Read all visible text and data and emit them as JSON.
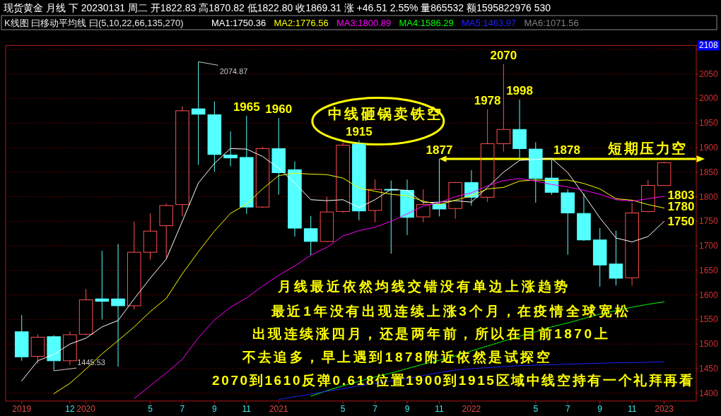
{
  "chart_data": {
    "type": "candlestick",
    "title": "现货黄金 月线 下 20230131 周二 开1822.83 高1870.82 低1822.80 收1869.31 涨 +46.51 2.55% 量865532 额1595822976 530",
    "legend_title": "K线图 曰移动平均线 曰(5,10,22,66,135,270)",
    "legend": "top",
    "grid": "y",
    "x": [
      "2019-09",
      "2019-10",
      "2019-11",
      "2019-12",
      "2020-01",
      "2020-02",
      "2020-03",
      "2020-04",
      "2020-05",
      "2020-06",
      "2020-07",
      "2020-08",
      "2020-09",
      "2020-10",
      "2020-11",
      "2020-12",
      "2021-01",
      "2021-02",
      "2021-03",
      "2021-04",
      "2021-05",
      "2021-06",
      "2021-07",
      "2021-08",
      "2021-09",
      "2021-10",
      "2021-11",
      "2021-12",
      "2022-01",
      "2022-02",
      "2022-03",
      "2022-04",
      "2022-05",
      "2022-06",
      "2022-07",
      "2022-08",
      "2022-09",
      "2022-10",
      "2022-11",
      "2022-12",
      "2023-01"
    ],
    "xlim": [
      "2019-08",
      "2023-03"
    ],
    "xticks": [
      {
        "value": "2019-09",
        "label": "2019"
      },
      {
        "value": "2019-12",
        "label": "12"
      },
      {
        "value": "2020-01",
        "label": "2020"
      },
      {
        "value": "2020-05",
        "label": "5"
      },
      {
        "value": "2020-07",
        "label": "7"
      },
      {
        "value": "2020-09",
        "label": "9"
      },
      {
        "value": "2020-11",
        "label": "11"
      },
      {
        "value": "2021-01",
        "label": "2021"
      },
      {
        "value": "2021-05",
        "label": "5"
      },
      {
        "value": "2021-07",
        "label": "7"
      },
      {
        "value": "2021-09",
        "label": "9"
      },
      {
        "value": "2021-11",
        "label": "11"
      },
      {
        "value": "2022-01",
        "label": "2022"
      },
      {
        "value": "2022-05",
        "label": "5"
      },
      {
        "value": "2022-07",
        "label": "7"
      },
      {
        "value": "2022-09",
        "label": "9"
      },
      {
        "value": "2022-11",
        "label": "11"
      },
      {
        "value": "2023-01",
        "label": "2023"
      }
    ],
    "ylim": [
      1384,
      2108
    ],
    "yticks": [
      1400,
      1450,
      1500,
      1550,
      1600,
      1650,
      1700,
      1750,
      1800,
      1850,
      1900,
      1950,
      2000,
      2050,
      {
        "value": 2100,
        "label": null
      },
      {
        "value": 2108,
        "label": "2108"
      }
    ],
    "ohlc": [
      [
        1525,
        1559,
        1466,
        1474
      ],
      [
        1475,
        1520,
        1460,
        1514
      ],
      [
        1515,
        1518,
        1445.53,
        1466
      ],
      [
        1466,
        1526,
        1457,
        1519
      ],
      [
        1520,
        1612,
        1518,
        1590
      ],
      [
        1592,
        1690,
        1550,
        1587
      ],
      [
        1592,
        1704,
        1454,
        1578
      ],
      [
        1578,
        1749,
        1570,
        1687
      ],
      [
        1687,
        1766,
        1672,
        1730
      ],
      [
        1741,
        1786,
        1674,
        1782
      ],
      [
        1784,
        1984,
        1760,
        1975
      ],
      [
        1979,
        2074.87,
        1865,
        1968
      ],
      [
        1967,
        1994,
        1851,
        1886
      ],
      [
        1885,
        1933,
        1862,
        1879
      ],
      [
        1880,
        1965,
        1765,
        1779
      ],
      [
        1779,
        1901,
        1777,
        1898
      ],
      [
        1898,
        1960,
        1804,
        1849
      ],
      [
        1855,
        1872,
        1719,
        1736
      ],
      [
        1735,
        1761,
        1681,
        1709
      ],
      [
        1709,
        1800,
        1708,
        1769
      ],
      [
        1770,
        1911,
        1767,
        1905
      ],
      [
        1907,
        1915,
        1752,
        1771
      ],
      [
        1772,
        1835,
        1748,
        1815
      ],
      [
        1815,
        1833,
        1684,
        1814
      ],
      [
        1813,
        1835,
        1722,
        1758
      ],
      [
        1759,
        1815,
        1748,
        1784
      ],
      [
        1785,
        1877,
        1760,
        1775
      ],
      [
        1776,
        1830,
        1755,
        1829
      ],
      [
        1829,
        1854,
        1782,
        1799
      ],
      [
        1799,
        1978,
        1789,
        1908
      ],
      [
        1908,
        2070,
        1892,
        1937
      ],
      [
        1937,
        1998,
        1875,
        1898
      ],
      [
        1897,
        1911,
        1788,
        1837
      ],
      [
        1838,
        1877,
        1804,
        1809
      ],
      [
        1808,
        1815,
        1682,
        1767
      ],
      [
        1766,
        1807,
        1710,
        1712
      ],
      [
        1712,
        1736,
        1617,
        1661
      ],
      [
        1663,
        1731,
        1619,
        1634
      ],
      [
        1635,
        1788,
        1619,
        1767
      ],
      [
        1770,
        1834,
        1768,
        1823
      ],
      [
        1822.83,
        1870.82,
        1822.8,
        1869.31
      ]
    ],
    "colors": [
      "#54ffff",
      "#ff5050",
      "#54ffff",
      "#ff5050",
      "#ff5050",
      "#54ffff",
      "#54ffff",
      "#ff5050",
      "#ff5050",
      "#ff5050",
      "#ff5050",
      "#54ffff",
      "#54ffff",
      "#54ffff",
      "#54ffff",
      "#ff5050",
      "#54ffff",
      "#54ffff",
      "#54ffff",
      "#ff5050",
      "#ff5050",
      "#54ffff",
      "#ff5050",
      "#54ffff",
      "#54ffff",
      "#ff5050",
      "#54ffff",
      "#ff5050",
      "#54ffff",
      "#ff5050",
      "#ff5050",
      "#54ffff",
      "#54ffff",
      "#54ffff",
      "#54ffff",
      "#54ffff",
      "#54ffff",
      "#54ffff",
      "#ff5050",
      "#ff5050",
      "#ff5050"
    ],
    "series": [
      {
        "name": "MA1:1750.36",
        "type": "line",
        "color": "#ffffff",
        "values": [
          1425,
          1466,
          1479,
          1500,
          1512,
          1535,
          1548,
          1592,
          1634,
          1673,
          1750,
          1828,
          1868,
          1898,
          1897,
          1882,
          1858,
          1828,
          1794,
          1792,
          1794,
          1778,
          1794,
          1815,
          1813,
          1788,
          1789,
          1792,
          1789,
          1819,
          1850,
          1874,
          1876,
          1878,
          1849,
          1804,
          1757,
          1716,
          1708,
          1719,
          1750
        ]
      },
      {
        "name": "MA2:1776.56",
        "type": "line",
        "color": "#ffff00",
        "values": [
          null,
          null,
          1399,
          1420,
          1449,
          1480,
          1507,
          1535,
          1566,
          1593,
          1643,
          1688,
          1730,
          1766,
          1785,
          1816,
          1843,
          1848,
          1846,
          1845,
          1838,
          1818,
          1811,
          1805,
          1802,
          1791,
          1784,
          1793,
          1802,
          1816,
          1819,
          1832,
          1834,
          1833,
          1834,
          1827,
          1816,
          1796,
          1793,
          1784,
          1777
        ]
      },
      {
        "name": "MA3:1800.89",
        "type": "line",
        "color": "#ff00ff",
        "values": [
          null,
          null,
          null,
          null,
          null,
          null,
          null,
          1389,
          1415,
          1441,
          1469,
          1513,
          1549,
          1575,
          1594,
          1618,
          1640,
          1659,
          1681,
          1697,
          1720,
          1731,
          1738,
          1750,
          1765,
          1781,
          1788,
          1800,
          1808,
          1822,
          1833,
          1837,
          1832,
          1825,
          1820,
          1813,
          1805,
          1794,
          1791,
          1796,
          1801
        ]
      },
      {
        "name": "MA4:1586.29",
        "type": "line",
        "color": "#00ff00",
        "values": [
          null,
          null,
          null,
          null,
          null,
          null,
          null,
          null,
          null,
          null,
          null,
          null,
          null,
          null,
          null,
          null,
          null,
          null,
          1394,
          1405,
          1415,
          1424,
          1433,
          1441,
          1450,
          1459,
          1467,
          1476,
          1486,
          1496,
          1506,
          1516,
          1525,
          1535,
          1543,
          1552,
          1561,
          1568,
          1575,
          1581,
          1586
        ]
      },
      {
        "name": "MA5:1463.97",
        "type": "line",
        "color": "#2020ff",
        "values": [
          null,
          null,
          null,
          null,
          null,
          null,
          null,
          null,
          null,
          null,
          null,
          null,
          null,
          null,
          null,
          null,
          1387,
          1393,
          1398,
          1404,
          1409,
          1415,
          1420,
          1425,
          1430,
          1436,
          1442,
          1447,
          1450,
          1452,
          1454,
          1456,
          1457,
          1458,
          1459,
          1460,
          1461,
          1462,
          1462,
          1463,
          1464
        ]
      },
      {
        "name": "MA6:1071.56",
        "type": "line",
        "color": "#808080",
        "values": [
          null,
          null,
          null,
          null,
          null,
          null,
          null,
          null,
          null,
          null,
          null,
          null,
          null,
          null,
          null,
          null,
          null,
          null,
          null,
          null,
          null,
          null,
          null,
          null,
          null,
          null,
          null,
          null,
          null,
          null,
          null,
          null,
          null,
          null,
          null,
          null,
          null,
          null,
          null,
          null,
          null
        ]
      }
    ],
    "annotations": [
      {
        "text": "2074.87",
        "x": "2020-08",
        "y": 2074.87
      },
      {
        "text": "1445.53",
        "x": "2019-11",
        "y": 1445.53
      },
      {
        "text": "1965",
        "x": "2020-11",
        "y": 1965
      },
      {
        "text": "1960",
        "x": "2021-01",
        "y": 1960
      },
      "中线砸锅卖铁空",
      {
        "text": "1915",
        "x": "2021-06",
        "y": 1915
      },
      {
        "text": "1877",
        "x": "2021-11",
        "y": 1877
      },
      {
        "text": "1978",
        "x": "2022-02",
        "y": 1978
      },
      {
        "text": "2070",
        "x": "2022-03",
        "y": 2070
      },
      {
        "text": "1998",
        "x": "2022-04",
        "y": 1998
      },
      "1878",
      "短期压力空",
      {
        "text": "1803",
        "x": "2023-01",
        "y": 1803
      },
      {
        "text": "1780",
        "x": "2023-01",
        "y": 1780
      },
      {
        "text": "1750",
        "x": "2023-01",
        "y": 1750
      },
      "月线最近依然均线交错没有单边上涨趋势",
      "最近1年没有出现连续上涨3个月，在疫情全球宽松",
      "出现连续涨四月，还是两年前，所以在目前1870上",
      "不去追多，早上遇到1878附近依然是试探空",
      "2070到1610反弹0.618位置1900到1915区域中线空持有一个礼拜再看"
    ]
  }
}
